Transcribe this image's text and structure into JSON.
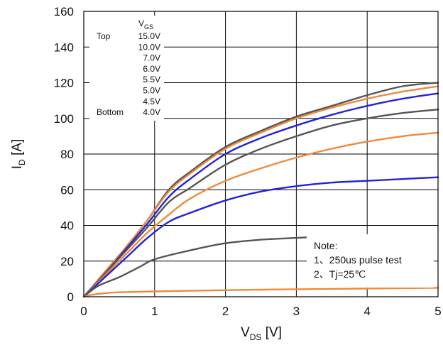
{
  "chart_data": {
    "type": "line",
    "x_axis": {
      "label": "V",
      "label_sub": "DS",
      "label_tail": " [V]",
      "range": [
        0,
        5
      ],
      "ticks": [
        "0",
        "1",
        "2",
        "3",
        "4",
        "5"
      ]
    },
    "y_axis": {
      "label": "I",
      "label_sub": "D",
      "label_tail": " [A]",
      "range": [
        0,
        160
      ],
      "ticks": [
        "0",
        "20",
        "40",
        "60",
        "80",
        "100",
        "120",
        "140",
        "160"
      ]
    },
    "grid": true,
    "legend": {
      "header": "V",
      "header_sub": "GS",
      "top_label": "Top",
      "bottom_label": "Bottom",
      "entries": [
        "15.0V",
        "10.0V",
        "7.0V",
        "6.0V",
        "5.5V",
        "5.0V",
        "4.5V",
        "4.0V"
      ],
      "placement": "top-left"
    },
    "notes": {
      "title": "Note:",
      "lines": [
        "1、250us pulse test",
        "2、Tj=25℃"
      ],
      "placement": "bottom-right"
    },
    "colors": {
      "gray": "#555555",
      "orange": "#ee8a3c",
      "blue": "#2222dd"
    },
    "series": [
      {
        "color": "gray",
        "points": [
          [
            0,
            0
          ],
          [
            0.3,
            14
          ],
          [
            0.6,
            28
          ],
          [
            0.9,
            43
          ],
          [
            1.2,
            60
          ],
          [
            1.5,
            70
          ],
          [
            2.0,
            84
          ],
          [
            2.5,
            93
          ],
          [
            3.0,
            101
          ],
          [
            3.5,
            107
          ],
          [
            4.0,
            113
          ],
          [
            4.5,
            118
          ],
          [
            5.0,
            120
          ]
        ]
      },
      {
        "color": "orange",
        "points": [
          [
            0,
            0
          ],
          [
            0.3,
            14
          ],
          [
            0.6,
            28
          ],
          [
            0.9,
            43
          ],
          [
            1.2,
            59
          ],
          [
            1.5,
            69
          ],
          [
            2.0,
            83
          ],
          [
            2.5,
            92
          ],
          [
            3.0,
            100
          ],
          [
            3.5,
            106
          ],
          [
            4.0,
            111
          ],
          [
            4.5,
            115
          ],
          [
            5.0,
            118
          ]
        ]
      },
      {
        "color": "blue",
        "points": [
          [
            0,
            0
          ],
          [
            0.3,
            13
          ],
          [
            0.6,
            27
          ],
          [
            0.9,
            41
          ],
          [
            1.2,
            56
          ],
          [
            1.5,
            66
          ],
          [
            2.0,
            80
          ],
          [
            2.5,
            89
          ],
          [
            3.0,
            96
          ],
          [
            3.5,
            102
          ],
          [
            4.0,
            107
          ],
          [
            4.5,
            111
          ],
          [
            5.0,
            114
          ]
        ]
      },
      {
        "color": "gray",
        "points": [
          [
            0,
            0
          ],
          [
            0.3,
            13
          ],
          [
            0.6,
            26
          ],
          [
            0.9,
            39
          ],
          [
            1.2,
            53
          ],
          [
            1.5,
            61
          ],
          [
            2.0,
            74
          ],
          [
            2.5,
            83
          ],
          [
            3.0,
            90
          ],
          [
            3.5,
            96
          ],
          [
            4.0,
            100
          ],
          [
            4.5,
            103
          ],
          [
            5.0,
            105
          ]
        ]
      },
      {
        "color": "orange",
        "points": [
          [
            0,
            0
          ],
          [
            0.3,
            12
          ],
          [
            0.6,
            24
          ],
          [
            0.9,
            36
          ],
          [
            1.2,
            46
          ],
          [
            1.5,
            55
          ],
          [
            2.0,
            65
          ],
          [
            2.5,
            72
          ],
          [
            3.0,
            78
          ],
          [
            3.5,
            83
          ],
          [
            4.0,
            87
          ],
          [
            4.5,
            90
          ],
          [
            5.0,
            92
          ]
        ]
      },
      {
        "color": "blue",
        "points": [
          [
            0,
            0
          ],
          [
            0.3,
            11
          ],
          [
            0.6,
            22
          ],
          [
            0.9,
            33
          ],
          [
            1.2,
            42
          ],
          [
            1.5,
            47
          ],
          [
            2.0,
            54
          ],
          [
            2.5,
            59
          ],
          [
            3.0,
            62
          ],
          [
            3.5,
            64
          ],
          [
            4.0,
            65
          ],
          [
            4.5,
            66
          ],
          [
            5.0,
            67
          ]
        ]
      },
      {
        "color": "gray",
        "points": [
          [
            0,
            0
          ],
          [
            0.2,
            6
          ],
          [
            0.5,
            11
          ],
          [
            0.8,
            17
          ],
          [
            1.0,
            21
          ],
          [
            1.5,
            26
          ],
          [
            2.0,
            30
          ],
          [
            2.5,
            32
          ],
          [
            3.0,
            33
          ],
          [
            3.5,
            34
          ]
        ]
      },
      {
        "color": "orange",
        "points": [
          [
            0,
            0
          ],
          [
            0.1,
            1
          ],
          [
            0.3,
            2
          ],
          [
            0.5,
            2.5
          ],
          [
            1.0,
            3
          ],
          [
            2.0,
            3.7
          ],
          [
            3.0,
            4.2
          ],
          [
            4.0,
            4.6
          ],
          [
            5.0,
            5
          ]
        ]
      }
    ]
  }
}
